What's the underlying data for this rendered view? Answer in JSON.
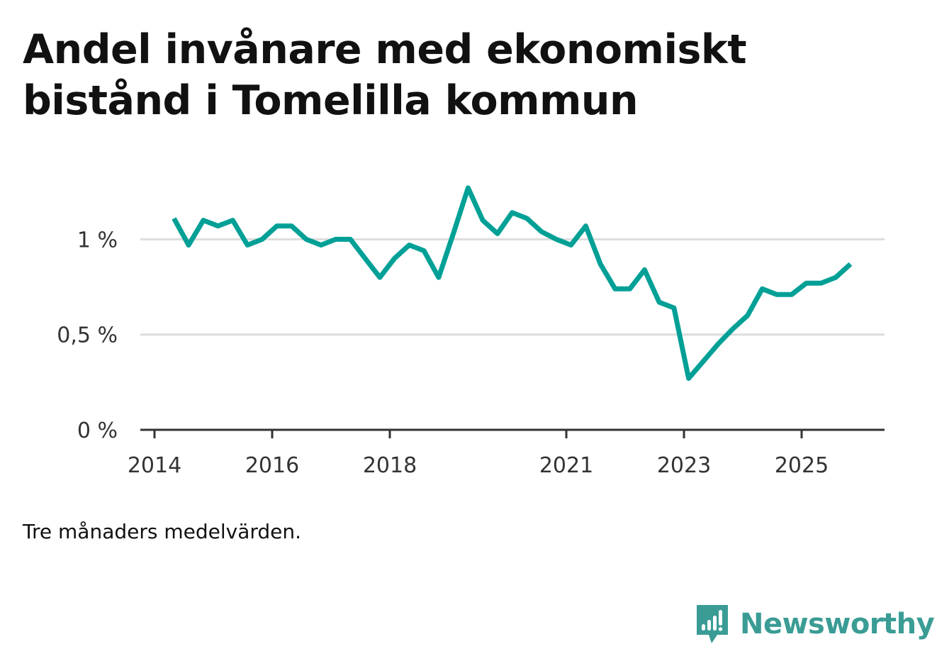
{
  "title_lines": [
    "Andel invånare med ekonomiskt",
    "bistånd i Tomelilla kommun"
  ],
  "note": "Tre månaders medelvärden.",
  "brand": {
    "name": "Newsworthy",
    "icon": "bar-chart-bubble-icon",
    "color": "#3a9c95"
  },
  "chart_data": {
    "type": "line",
    "title": "Andel invånare med ekonomiskt bistånd i Tomelilla kommun",
    "xlabel": "",
    "ylabel": "",
    "xlim": [
      2014,
      2026.6
    ],
    "ylim": [
      0,
      1.4
    ],
    "line_color": "#00a096",
    "grid": true,
    "yticks": [
      {
        "value": 0,
        "label": "0 %"
      },
      {
        "value": 0.5,
        "label": "0,5 %"
      },
      {
        "value": 1,
        "label": "1 %"
      }
    ],
    "xticks": [
      {
        "value": 2014,
        "label": "2014"
      },
      {
        "value": 2016,
        "label": "2016"
      },
      {
        "value": 2018,
        "label": "2018"
      },
      {
        "value": 2021,
        "label": "2021"
      },
      {
        "value": 2023,
        "label": "2023"
      },
      {
        "value": 2025,
        "label": "2025"
      }
    ],
    "series": [
      {
        "name": "Andel invånare med ekonomiskt bistånd",
        "x": [
          2014.33,
          2014.58,
          2014.83,
          2015.08,
          2015.33,
          2015.58,
          2015.83,
          2016.08,
          2016.33,
          2016.58,
          2016.83,
          2017.08,
          2017.33,
          2017.58,
          2017.83,
          2018.08,
          2018.33,
          2018.58,
          2018.83,
          2019.08,
          2019.33,
          2019.58,
          2019.83,
          2020.08,
          2020.33,
          2020.58,
          2020.83,
          2021.08,
          2021.33,
          2021.58,
          2021.83,
          2022.08,
          2022.33,
          2022.58,
          2022.83,
          2023.08,
          2023.33,
          2023.58,
          2023.83,
          2024.08,
          2024.33,
          2024.58,
          2024.83,
          2025.08,
          2025.33,
          2025.58,
          2025.83
        ],
        "values": [
          1.11,
          0.97,
          1.1,
          1.07,
          1.1,
          0.97,
          1.0,
          1.07,
          1.07,
          1.0,
          0.97,
          1.0,
          1.0,
          0.9,
          0.8,
          0.9,
          0.97,
          0.94,
          0.8,
          1.03,
          1.27,
          1.1,
          1.03,
          1.14,
          1.11,
          1.04,
          1.0,
          0.97,
          1.07,
          0.87,
          0.74,
          0.74,
          0.84,
          0.67,
          0.64,
          0.27,
          0.36,
          0.45,
          0.53,
          0.6,
          0.74,
          0.71,
          0.71,
          0.77,
          0.77,
          0.8,
          0.87
        ]
      }
    ]
  }
}
